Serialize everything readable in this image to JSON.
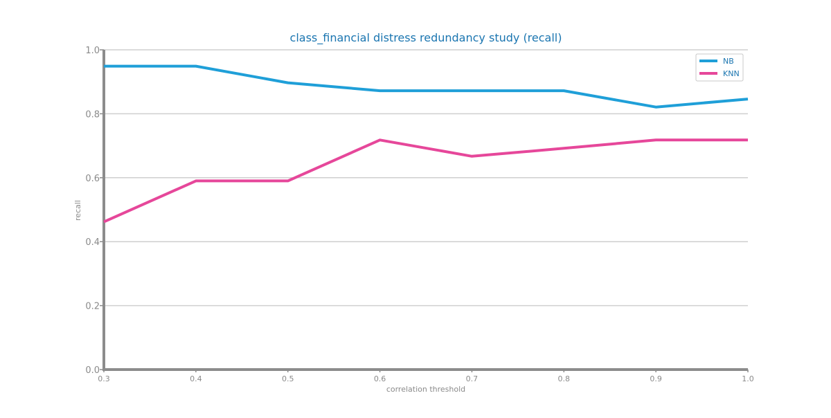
{
  "chart_data": {
    "type": "line",
    "title": "class_financial distress redundancy study (recall)",
    "xlabel": "correlation threshold",
    "ylabel": "recall",
    "x": [
      0.3,
      0.4,
      0.5,
      0.6,
      0.7,
      0.8,
      0.9,
      1.0
    ],
    "x_tick_labels": [
      "0.3",
      "0.4",
      "0.5",
      "0.6",
      "0.7",
      "0.8",
      "0.9",
      "1.0"
    ],
    "y_ticks": [
      0.0,
      0.2,
      0.4,
      0.6,
      0.8,
      1.0
    ],
    "y_tick_labels": [
      "0.0",
      "0.2",
      "0.4",
      "0.6",
      "0.8",
      "1.0"
    ],
    "xlim": [
      0.3,
      1.0
    ],
    "ylim": [
      0.0,
      1.0
    ],
    "grid": "horizontal",
    "legend_position": "top-right",
    "series": [
      {
        "name": "NB",
        "color": "#1f9fd8",
        "values": [
          0.949,
          0.949,
          0.897,
          0.872,
          0.872,
          0.872,
          0.821,
          0.846
        ]
      },
      {
        "name": "KNN",
        "color": "#e6479a",
        "values": [
          0.462,
          0.59,
          0.59,
          0.718,
          0.667,
          0.692,
          0.718,
          0.718
        ]
      }
    ]
  }
}
